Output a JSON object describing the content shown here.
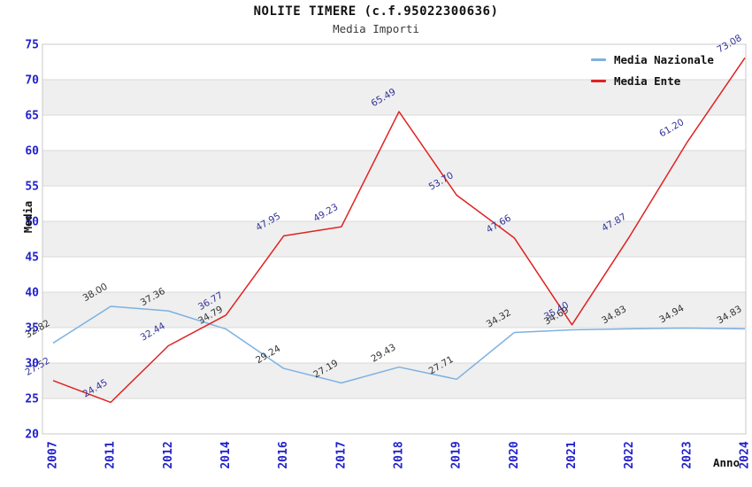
{
  "header": {
    "title": "NOLITE TIMERE (c.f.95022300636)",
    "subtitle": "Media Importi"
  },
  "legend": {
    "items": [
      {
        "label": "Media Nazionale",
        "color": "#7cb1e2"
      },
      {
        "label": "Media Ente",
        "color": "#e02222"
      }
    ]
  },
  "axes": {
    "y_title": "Media",
    "x_title": "Anno"
  },
  "chart_data": {
    "type": "line",
    "title": "NOLITE TIMERE (c.f.95022300636)",
    "subtitle": "Media Importi",
    "xlabel": "Anno",
    "ylabel": "Media",
    "categories": [
      "2007",
      "2011",
      "2012",
      "2014",
      "2016",
      "2017",
      "2018",
      "2019",
      "2020",
      "2021",
      "2022",
      "2023",
      "2024"
    ],
    "series": [
      {
        "name": "Media Nazionale",
        "color": "#7cb1e2",
        "label_color": "#333333",
        "values": [
          32.82,
          38.0,
          37.36,
          34.79,
          29.24,
          27.19,
          29.43,
          27.71,
          34.32,
          34.69,
          34.83,
          34.94,
          34.83
        ]
      },
      {
        "name": "Media Ente",
        "color": "#e02222",
        "label_color": "#333399",
        "values": [
          27.52,
          24.45,
          32.44,
          36.77,
          47.95,
          49.23,
          65.49,
          53.7,
          47.66,
          35.4,
          47.87,
          61.2,
          73.08
        ]
      }
    ],
    "ylim": [
      20,
      75
    ],
    "yticks": [
      20,
      25,
      30,
      35,
      40,
      45,
      50,
      55,
      60,
      65,
      70,
      75
    ],
    "grid": true,
    "band_fill": "#efefef",
    "gridline_color": "#d9d9d9",
    "border_color": "#c8c8c8",
    "tick_label_color": "#2222cc",
    "legend_position": "top-right"
  }
}
